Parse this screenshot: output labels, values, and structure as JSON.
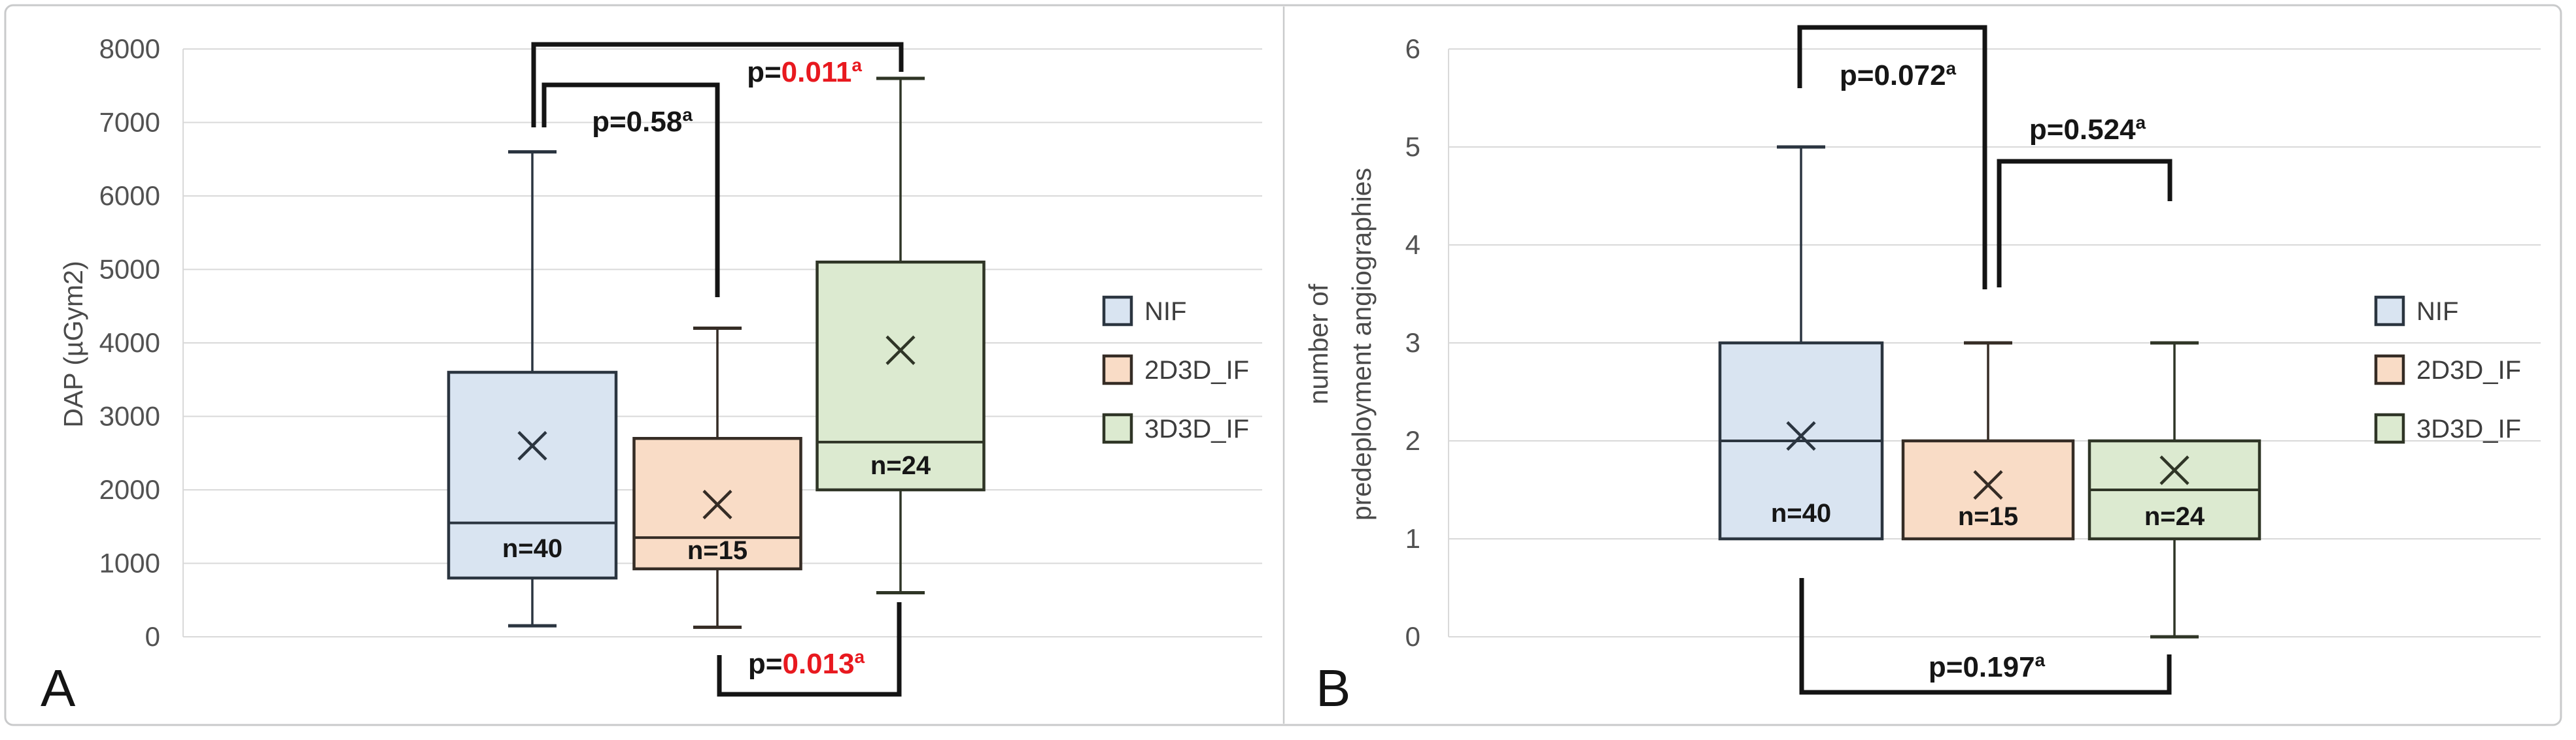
{
  "figure": {
    "background": "#ffffff",
    "frame_color": "#c9cacb",
    "panels": [
      {
        "letter": "A"
      },
      {
        "letter": "B"
      }
    ]
  },
  "colors": {
    "grid": "#d9d9d9",
    "ink": "#161616",
    "bracket": "#141414",
    "red": "#e8191f",
    "tick_text": "#525252",
    "axis_title_text": "#4a4a4a",
    "legend_text": "#3d3d3d",
    "panel_letter": "#141414"
  },
  "series": [
    {
      "name": "NIF",
      "fill": "#d9e4f1",
      "edge": "#2b3540"
    },
    {
      "name": "2D3D_IF",
      "fill": "#f9dcc6",
      "edge": "#352c25"
    },
    {
      "name": "3D3D_IF",
      "fill": "#dcead0",
      "edge": "#2f3526"
    }
  ],
  "chart_data": [
    {
      "type": "boxplot",
      "panel_label": "A",
      "ylabel_lines": [
        "DAP (µGym2)"
      ],
      "ylim": [
        0,
        8000
      ],
      "ytick_step": 1000,
      "yticks": [
        0,
        1000,
        2000,
        3000,
        4000,
        5000,
        6000,
        7000,
        8000
      ],
      "grid": true,
      "legend_position": "right-inside",
      "legend": [
        "NIF",
        "2D3D_IF",
        "3D3D_IF"
      ],
      "groups": [
        {
          "series": "NIF",
          "n": 40,
          "n_label": "n=40",
          "whisker_low": 150,
          "q1": 800,
          "median": 1550,
          "q3": 3600,
          "whisker_high": 6600,
          "mean": 2600
        },
        {
          "series": "2D3D_IF",
          "n": 15,
          "n_label": "n=15",
          "whisker_low": 130,
          "q1": 925,
          "median": 1350,
          "q3": 2700,
          "whisker_high": 4200,
          "mean": 1800
        },
        {
          "series": "3D3D_IF",
          "n": 24,
          "n_label": "n=24",
          "whisker_low": 600,
          "q1": 2000,
          "median": 2650,
          "q3": 5100,
          "whisker_high": 7600,
          "mean": 3900
        }
      ],
      "annotations": [
        {
          "prefix": "p=",
          "value": "0.58",
          "superscript": "a",
          "value_color": "#161616",
          "connects": [
            "NIF",
            "2D3D_IF"
          ]
        },
        {
          "prefix": "p=",
          "value": "0.011",
          "superscript": "a",
          "value_color": "#e8191f",
          "connects": [
            "NIF",
            "3D3D_IF"
          ]
        },
        {
          "prefix": "p=",
          "value": "0.013",
          "superscript": "a",
          "value_color": "#e8191f",
          "connects": [
            "2D3D_IF",
            "3D3D_IF"
          ]
        }
      ]
    },
    {
      "type": "boxplot",
      "panel_label": "B",
      "ylabel_lines": [
        "number of",
        "predeployment angiographies"
      ],
      "ylim": [
        0,
        6
      ],
      "ytick_step": 1,
      "yticks": [
        0,
        1,
        2,
        3,
        4,
        5,
        6
      ],
      "grid": true,
      "legend_position": "right-inside",
      "legend": [
        "NIF",
        "2D3D_IF",
        "3D3D_IF"
      ],
      "groups": [
        {
          "series": "NIF",
          "n": 40,
          "n_label": "n=40",
          "whisker_low": 1,
          "q1": 1,
          "median": 2,
          "q3": 3,
          "whisker_high": 5,
          "mean": 2.05
        },
        {
          "series": "2D3D_IF",
          "n": 15,
          "n_label": "n=15",
          "whisker_low": 1,
          "q1": 1,
          "median": 2,
          "q3": 2,
          "whisker_high": 3,
          "mean": 1.55
        },
        {
          "series": "3D3D_IF",
          "n": 24,
          "n_label": "n=24",
          "whisker_low": 0,
          "q1": 1,
          "median": 1.5,
          "q3": 2,
          "whisker_high": 3,
          "mean": 1.7
        }
      ],
      "annotations": [
        {
          "prefix": "p=",
          "value": "0.072",
          "superscript": "a",
          "value_color": "#161616",
          "connects": [
            "NIF",
            "2D3D_IF"
          ]
        },
        {
          "prefix": "p=",
          "value": "0.524",
          "superscript": "a",
          "value_color": "#161616",
          "connects": [
            "2D3D_IF",
            "3D3D_IF"
          ]
        },
        {
          "prefix": "p=",
          "value": "0.197",
          "superscript": "a",
          "value_color": "#161616",
          "connects": [
            "NIF",
            "3D3D_IF"
          ]
        }
      ]
    }
  ]
}
